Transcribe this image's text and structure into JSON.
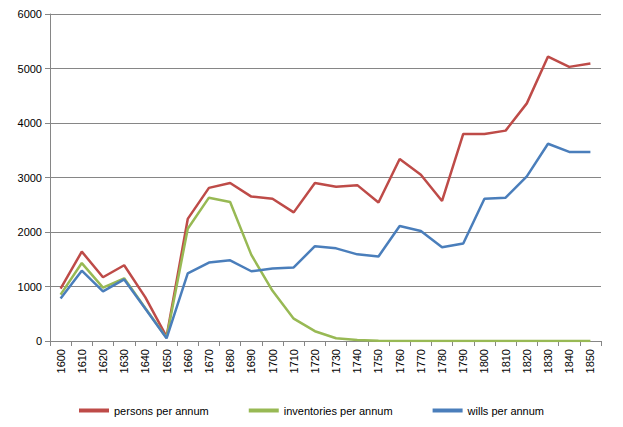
{
  "chart_data": {
    "type": "line",
    "categories": [
      "1600",
      "1610",
      "1620",
      "1630",
      "1640",
      "1650",
      "1660",
      "1670",
      "1680",
      "1690",
      "1700",
      "1710",
      "1720",
      "1730",
      "1740",
      "1750",
      "1760",
      "1770",
      "1780",
      "1790",
      "1800",
      "1810",
      "1820",
      "1830",
      "1840",
      "1850"
    ],
    "series": [
      {
        "name": "persons per annum",
        "color": "#be4b48",
        "values": [
          960,
          1640,
          1170,
          1390,
          800,
          80,
          2240,
          2810,
          2900,
          2650,
          2610,
          2360,
          2900,
          2830,
          2860,
          2540,
          3340,
          3050,
          2570,
          3800,
          3800,
          3860,
          4360,
          5220,
          5030,
          5090
        ]
      },
      {
        "name": "inventories per annum",
        "color": "#98b954",
        "values": [
          850,
          1430,
          980,
          1150,
          600,
          60,
          2060,
          2630,
          2550,
          1580,
          920,
          410,
          180,
          50,
          20,
          5,
          0,
          0,
          0,
          0,
          0,
          0,
          0,
          0,
          0,
          0
        ]
      },
      {
        "name": "wills per annum",
        "color": "#4a7ebb",
        "values": [
          780,
          1290,
          910,
          1130,
          590,
          50,
          1240,
          1440,
          1480,
          1280,
          1330,
          1350,
          1740,
          1700,
          1590,
          1550,
          2110,
          2020,
          1720,
          1790,
          2610,
          2630,
          3020,
          3620,
          3470,
          3470
        ]
      }
    ],
    "ylim": [
      0,
      6000
    ],
    "yticks": [
      0,
      1000,
      2000,
      3000,
      4000,
      5000,
      6000
    ],
    "grid": true,
    "legend": "bottom"
  }
}
